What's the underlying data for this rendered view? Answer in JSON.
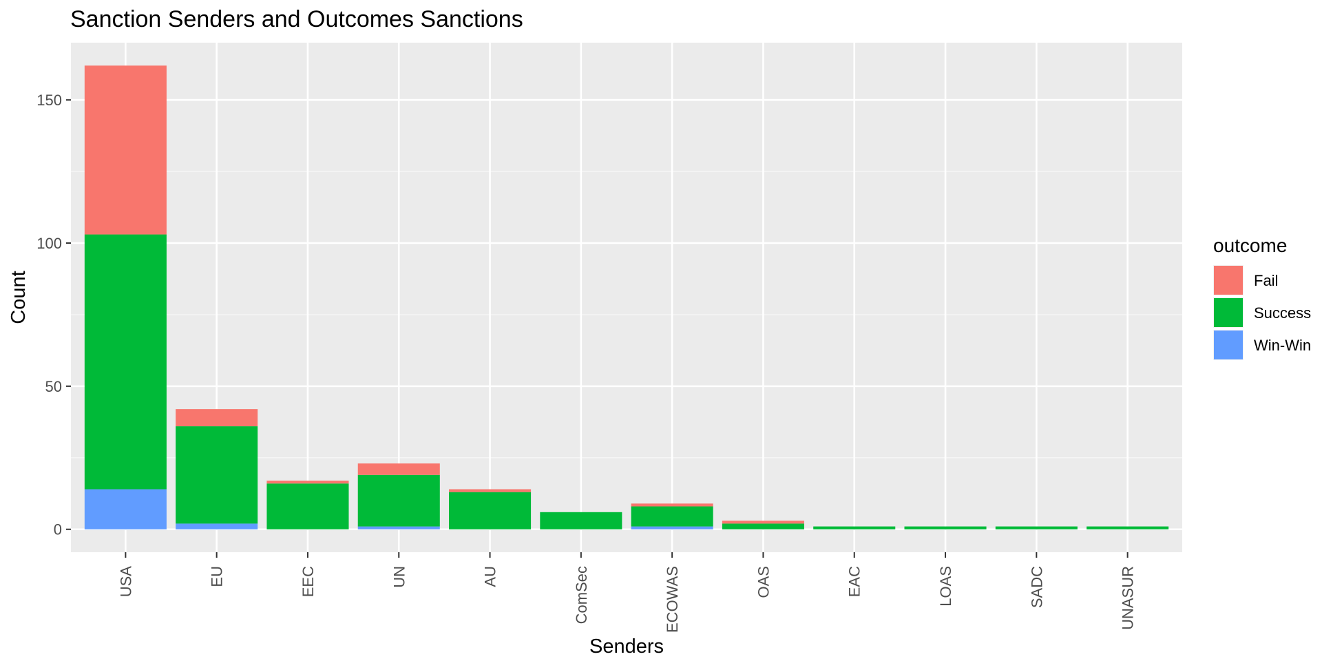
{
  "chart_data": {
    "type": "bar",
    "stacked": true,
    "title": "Sanction Senders and Outcomes Sanctions",
    "xlabel": "Senders",
    "ylabel": "Count",
    "ylim": [
      -8,
      170
    ],
    "yticks": [
      0,
      50,
      100,
      150
    ],
    "grid": true,
    "legend": {
      "title": "outcome",
      "position": "right"
    },
    "categories": [
      "USA",
      "EU",
      "EEC",
      "UN",
      "AU",
      "ComSec",
      "ECOWAS",
      "OAS",
      "EAC",
      "LOAS",
      "SADC",
      "UNASUR"
    ],
    "series": [
      {
        "name": "Win-Win",
        "color": "#619cff",
        "values": [
          14,
          2,
          0,
          1,
          0,
          0,
          1,
          0,
          0,
          0,
          0,
          0
        ]
      },
      {
        "name": "Success",
        "color": "#00ba38",
        "values": [
          89,
          34,
          16,
          18,
          13,
          6,
          7,
          2,
          1,
          1,
          1,
          1
        ]
      },
      {
        "name": "Fail",
        "color": "#f8766d",
        "values": [
          59,
          6,
          1,
          4,
          1,
          0,
          1,
          1,
          0,
          0,
          0,
          0
        ]
      }
    ]
  }
}
